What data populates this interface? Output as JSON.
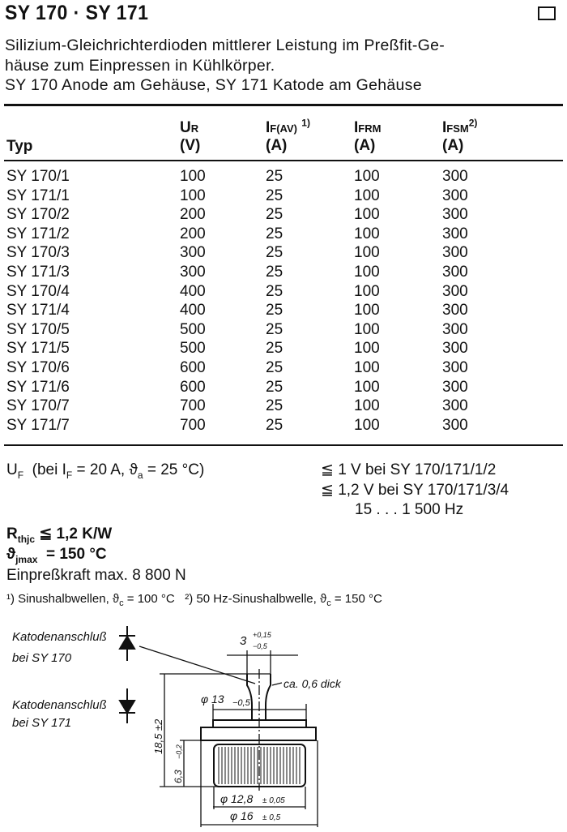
{
  "header": {
    "title": "SY 170 · SY 171",
    "description_lines": [
      "Silizium-Gleichrichterdioden mittlerer Leistung im Preßfit-Ge-",
      "häuse zum Einpressen in Kühlkörper.",
      "SY 170 Anode am Gehäuse, SY 171 Katode am Gehäuse"
    ]
  },
  "table": {
    "columns": [
      {
        "symbol": "",
        "sub": "",
        "note": "",
        "unit": "Typ"
      },
      {
        "symbol": "U",
        "sub": "R",
        "note": "",
        "unit": "(V)"
      },
      {
        "symbol": "I",
        "sub": "F(AV)",
        "note": "1)",
        "unit": "(A)"
      },
      {
        "symbol": "I",
        "sub": "FRM",
        "note": "",
        "unit": "(A)"
      },
      {
        "symbol": "I",
        "sub": "FSM",
        "note": "2)",
        "unit": "(A)"
      }
    ],
    "rows": [
      [
        "SY 170/1",
        "100",
        "25",
        "100",
        "300"
      ],
      [
        "SY 171/1",
        "100",
        "25",
        "100",
        "300"
      ],
      [
        "SY 170/2",
        "200",
        "25",
        "100",
        "300"
      ],
      [
        "SY 171/2",
        "200",
        "25",
        "100",
        "300"
      ],
      [
        "SY 170/3",
        "300",
        "25",
        "100",
        "300"
      ],
      [
        "SY 171/3",
        "300",
        "25",
        "100",
        "300"
      ],
      [
        "SY 170/4",
        "400",
        "25",
        "100",
        "300"
      ],
      [
        "SY 171/4",
        "400",
        "25",
        "100",
        "300"
      ],
      [
        "SY 170/5",
        "500",
        "25",
        "100",
        "300"
      ],
      [
        "SY 171/5",
        "500",
        "25",
        "100",
        "300"
      ],
      [
        "SY 170/6",
        "600",
        "25",
        "100",
        "300"
      ],
      [
        "SY 171/6",
        "600",
        "25",
        "100",
        "300"
      ],
      [
        "SY 170/7",
        "700",
        "25",
        "100",
        "300"
      ],
      [
        "SY 171/7",
        "700",
        "25",
        "100",
        "300"
      ]
    ]
  },
  "specs": {
    "uf_label": "U",
    "uf_sub": "F",
    "uf_condition": "(bei I",
    "uf_condition_sub": "F",
    "uf_condition_rest": " = 20 A, ϑ",
    "uf_condition_sub2": "a",
    "uf_condition_end": " = 25 °C)",
    "uf_values": [
      "≦ 1 V bei SY 170/171/1/2",
      "≦ 1,2 V bei SY 170/171/3/4",
      "15 . . . 1 500 Hz"
    ],
    "rth_label": "R",
    "rth_sub": "thjc",
    "rth_value": "≦ 1,2 K/W",
    "tj_label": "ϑ",
    "tj_sub": "jmax",
    "tj_value": "= 150 °C",
    "force": "Einpreßkraft max. 8 800 N",
    "footnote1": "¹) Sinushalbwellen, ϑ",
    "footnote1_sub": "c",
    "footnote1_rest": " = 100 °C",
    "footnote2": "²) 50 Hz-Sinushalbwelle, ϑ",
    "footnote2_sub": "c",
    "footnote2_rest": " = 150 °C"
  },
  "drawing": {
    "label1_line1": "Katodenanschluß",
    "label1_line2": "bei SY 170",
    "label2_line1": "Katodenanschluß",
    "label2_line2": "bei SY 171",
    "dim_tab": "3",
    "dim_tab_tol_plus": "+0,15",
    "dim_tab_tol_minus": "−0,5",
    "thickness": "ca. 0,6 dick",
    "dim_flange": "φ 13",
    "dim_flange_tol": "−0,5",
    "dim_height": "18,5 ±2",
    "dim_body_height": "6,3",
    "dim_body_height_tol": "−0,2",
    "dim_knurl": "φ 12,8",
    "dim_knurl_tol": "± 0,05",
    "dim_outer": "φ 16",
    "dim_outer_tol": "± 0,5"
  }
}
